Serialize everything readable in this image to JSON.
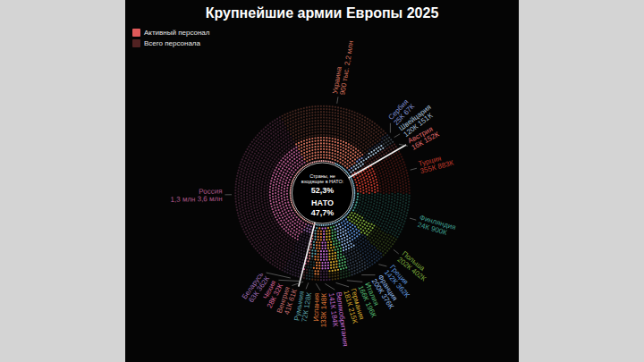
{
  "chart_data": {
    "type": "radial_dot",
    "title": "Крупнейшие армии Европы 2025",
    "legend": "top-left",
    "data_labels": true,
    "measures": [
      {
        "name": "Активный персонал"
      },
      {
        "name": "Всего персонала"
      }
    ],
    "groups": [
      {
        "name": "Страны, не входящие в НАТО:",
        "nato": false,
        "value": 52.3,
        "value_label": "52,3%",
        "color": "#e8a0a0"
      },
      {
        "name": "НАТО",
        "nato": true,
        "value": 47.7,
        "value_label": "47,7%",
        "color": "#8fc7e0"
      }
    ],
    "countries": [
      {
        "name": "Турция",
        "nato": true,
        "active": 355000,
        "total": 883000,
        "active_label": "355К",
        "total_label": "883К",
        "color": "#c0392b"
      },
      {
        "name": "Финляндия",
        "nato": true,
        "active": 24000,
        "total": 900000,
        "active_label": "24К",
        "total_label": "900К",
        "color": "#3f9e8f"
      },
      {
        "name": "Польша",
        "nato": true,
        "active": 202000,
        "total": 402000,
        "active_label": "202К",
        "total_label": "402К",
        "color": "#7aa83a"
      },
      {
        "name": "Греция",
        "nato": true,
        "active": 142000,
        "total": 362000,
        "active_label": "142К",
        "total_label": "362К",
        "color": "#5b8fd6"
      },
      {
        "name": "Франция",
        "nato": true,
        "active": 200000,
        "total": 376000,
        "active_label": "200К",
        "total_label": "376К",
        "color": "#8fb6e8"
      },
      {
        "name": "Италия",
        "nato": true,
        "active": 166000,
        "total": 196000,
        "active_label": "166К",
        "total_label": "196К",
        "color": "#4fb06a"
      },
      {
        "name": "Германия",
        "nato": true,
        "active": 181000,
        "total": 215000,
        "active_label": "181К",
        "total_label": "215К",
        "color": "#d4a72c"
      },
      {
        "name": "Великобритания",
        "nato": true,
        "active": 141000,
        "total": 184000,
        "active_label": "141К",
        "total_label": "184К",
        "color": "#c46bd1"
      },
      {
        "name": "Испания",
        "nato": true,
        "active": 133000,
        "total": 148000,
        "active_label": "133К",
        "total_label": "148К",
        "color": "#e07b39"
      },
      {
        "name": "Румыния",
        "nato": true,
        "active": 72000,
        "total": 128000,
        "active_label": "72К",
        "total_label": "128К",
        "color": "#5aa0a8"
      },
      {
        "name": "Венгрия",
        "nato": true,
        "active": 41000,
        "total": 61000,
        "active_label": "41К",
        "total_label": "61К",
        "color": "#c06a6a"
      },
      {
        "name": "Чехия",
        "nato": true,
        "active": 28000,
        "total": 32000,
        "active_label": "28К",
        "total_label": "32К",
        "color": "#d06090"
      },
      {
        "name": "Беларусь",
        "nato": false,
        "active": 63000,
        "total": 362000,
        "active_label": "63К",
        "total_label": "362К",
        "color": "#9a6ab0"
      },
      {
        "name": "Россия",
        "nato": false,
        "active": 1300000,
        "total": 3600000,
        "active_label": "1,3 млн",
        "total_label": "3,6 млн",
        "color": "#b0588a"
      },
      {
        "name": "Украина",
        "nato": false,
        "active": 900000,
        "total": 2200000,
        "active_label": "900 тыс.",
        "total_label": "2,2 млн",
        "color": "#d2705a"
      },
      {
        "name": "Сербия",
        "nato": false,
        "active": 25000,
        "total": 67000,
        "active_label": "25К",
        "total_label": "67К",
        "color": "#7f8fd0"
      },
      {
        "name": "Швейцария",
        "nato": false,
        "active": 120000,
        "total": 151000,
        "active_label": "120К",
        "total_label": "151К",
        "color": "#a8c0d8"
      },
      {
        "name": "Австрия",
        "nato": false,
        "active": 16000,
        "total": 152000,
        "active_label": "16К",
        "total_label": "152К",
        "color": "#e06a6a"
      }
    ]
  }
}
